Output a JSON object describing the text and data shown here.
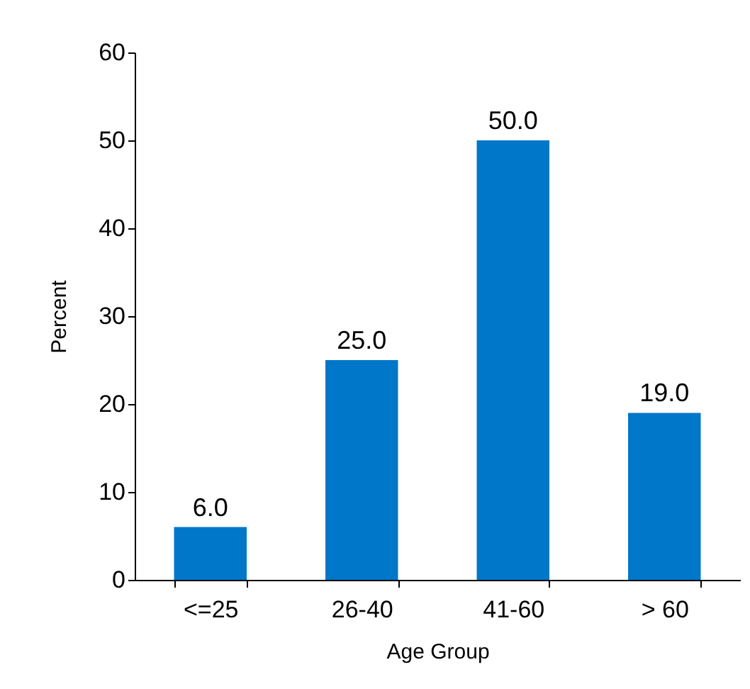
{
  "chart_data": {
    "type": "bar",
    "xlabel": "Age Group",
    "ylabel": "Percent",
    "categories": [
      "<=25",
      "26-40",
      "41-60",
      "> 60"
    ],
    "values": [
      6.0,
      25.0,
      50.0,
      19.0
    ],
    "color": "#0077c8",
    "value_labels": [
      "6.0",
      "25.0",
      "50.0",
      "19.0"
    ],
    "ylim": [
      0,
      60
    ],
    "yticks": [
      0,
      10,
      20,
      30,
      40,
      50,
      60
    ],
    "grid": false
  }
}
